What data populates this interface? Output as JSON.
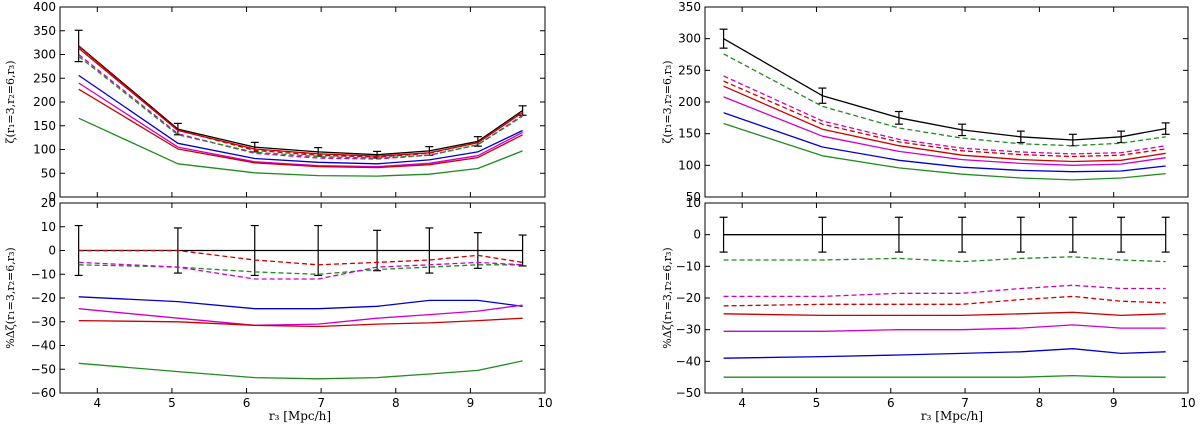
{
  "figure": {
    "ylabel_top": "ζ(r₁=3,r₂=6,r₃)",
    "ylabel_bottom": "%Δζ(r₁=3,r₂=6,r₃)",
    "xlabel": "r₃ [Mpc/h]"
  },
  "chart_data": [
    {
      "type": "line",
      "panel": "left-top",
      "title": "",
      "xlim": [
        3.5,
        10
      ],
      "ylim": [
        0,
        400
      ],
      "x_ticks": [
        4,
        5,
        6,
        7,
        8,
        9,
        10
      ],
      "y_ticks": [
        0,
        50,
        100,
        150,
        200,
        250,
        300,
        350,
        400
      ],
      "x": [
        3.75,
        5.08,
        6.11,
        6.96,
        7.75,
        8.45,
        9.1,
        9.7
      ],
      "series": [
        {
          "color": "#000000",
          "dash": false,
          "values": [
            318,
            143,
            105,
            95,
            89,
            97,
            117,
            182
          ],
          "errors": [
            33,
            12,
            10,
            9,
            7,
            9,
            10,
            10
          ]
        },
        {
          "color": "#cc0000",
          "dash": false,
          "values": [
            313,
            140,
            101,
            91,
            86,
            93,
            114,
            178
          ]
        },
        {
          "color": "#cc0000",
          "dash": true,
          "values": [
            317,
            141,
            98,
            88,
            84,
            92,
            115,
            180
          ]
        },
        {
          "color": "#cc00cc",
          "dash": true,
          "values": [
            300,
            133,
            92,
            82,
            80,
            88,
            110,
            172
          ]
        },
        {
          "color": "#228b22",
          "dash": true,
          "values": [
            296,
            131,
            94,
            85,
            82,
            88,
            110,
            170
          ]
        },
        {
          "color": "#0000cc",
          "dash": false,
          "values": [
            256,
            113,
            81,
            73,
            70,
            78,
            95,
            140
          ]
        },
        {
          "color": "#cc00cc",
          "dash": false,
          "values": [
            240,
            105,
            74,
            66,
            64,
            71,
            87,
            136
          ]
        },
        {
          "color": "#cc0000",
          "dash": false,
          "values": [
            227,
            101,
            72,
            64,
            62,
            68,
            83,
            131
          ]
        },
        {
          "color": "#228b22",
          "dash": false,
          "values": [
            166,
            70,
            51,
            45,
            44,
            48,
            60,
            97
          ]
        }
      ]
    },
    {
      "type": "line",
      "panel": "left-bottom",
      "title": "",
      "xlim": [
        3.5,
        10
      ],
      "ylim": [
        -60,
        20
      ],
      "x_ticks": [
        4,
        5,
        6,
        7,
        8,
        9,
        10
      ],
      "y_ticks": [
        -60,
        -50,
        -40,
        -30,
        -20,
        -10,
        0,
        10,
        20
      ],
      "x": [
        3.75,
        5.08,
        6.11,
        6.96,
        7.75,
        8.45,
        9.1,
        9.7
      ],
      "series": [
        {
          "color": "#000000",
          "dash": false,
          "values": [
            0,
            0,
            0,
            0,
            0,
            0,
            0,
            0
          ],
          "errors": [
            10.5,
            9.5,
            10.5,
            10.5,
            8.5,
            9.5,
            7.5,
            6.5
          ]
        },
        {
          "color": "#cc0000",
          "dash": true,
          "values": [
            0,
            0,
            -4,
            -6,
            -5,
            -4,
            -2,
            -5
          ]
        },
        {
          "color": "#228b22",
          "dash": true,
          "values": [
            -6,
            -7,
            -9,
            -10,
            -8,
            -7,
            -6,
            -6
          ]
        },
        {
          "color": "#cc00cc",
          "dash": true,
          "values": [
            -5,
            -7,
            -12,
            -12,
            -7,
            -6,
            -5,
            -6
          ]
        },
        {
          "color": "#0000cc",
          "dash": false,
          "values": [
            -19.5,
            -21.5,
            -24.5,
            -24.5,
            -23.5,
            -21,
            -21,
            -23.5
          ]
        },
        {
          "color": "#cc00cc",
          "dash": false,
          "values": [
            -24.5,
            -28.5,
            -31.5,
            -31,
            -28.5,
            -27,
            -25.5,
            -23
          ]
        },
        {
          "color": "#cc0000",
          "dash": false,
          "values": [
            -29.5,
            -30,
            -31.5,
            -32,
            -31,
            -30.5,
            -29.5,
            -28.5
          ]
        },
        {
          "color": "#228b22",
          "dash": false,
          "values": [
            -47.5,
            -51,
            -53.5,
            -54,
            -53.5,
            -52,
            -50.5,
            -46.5
          ]
        }
      ]
    },
    {
      "type": "line",
      "panel": "right-top",
      "title": "",
      "xlim": [
        3.5,
        10
      ],
      "ylim": [
        50,
        350
      ],
      "x_ticks": [
        4,
        5,
        6,
        7,
        8,
        9,
        10
      ],
      "y_ticks": [
        50,
        100,
        150,
        200,
        250,
        300,
        350
      ],
      "x": [
        3.75,
        5.08,
        6.11,
        6.96,
        7.75,
        8.45,
        9.1,
        9.7
      ],
      "series": [
        {
          "color": "#000000",
          "dash": false,
          "values": [
            300,
            210,
            175,
            156,
            145,
            140,
            145,
            158
          ],
          "errors": [
            15,
            12,
            10,
            9,
            9,
            9,
            9,
            9
          ]
        },
        {
          "color": "#228b22",
          "dash": true,
          "values": [
            276,
            193,
            159,
            143,
            134,
            131,
            135,
            145
          ]
        },
        {
          "color": "#cc00cc",
          "dash": true,
          "values": [
            241,
            170,
            141,
            127,
            121,
            118,
            120,
            131
          ]
        },
        {
          "color": "#cc0000",
          "dash": true,
          "values": [
            233,
            165,
            137,
            123,
            117,
            114,
            116,
            126
          ]
        },
        {
          "color": "#cc0000",
          "dash": false,
          "values": [
            225,
            157,
            131,
            116,
            109,
            106,
            108,
            119
          ]
        },
        {
          "color": "#cc00cc",
          "dash": false,
          "values": [
            208,
            146,
            122,
            109,
            103,
            100,
            102,
            112
          ]
        },
        {
          "color": "#0000cc",
          "dash": false,
          "values": [
            183,
            129,
            108,
            97,
            92,
            90,
            91,
            99
          ]
        },
        {
          "color": "#228b22",
          "dash": false,
          "values": [
            166,
            115,
            96,
            86,
            80,
            77,
            80,
            87
          ]
        }
      ]
    },
    {
      "type": "line",
      "panel": "right-bottom",
      "title": "",
      "xlim": [
        3.5,
        10
      ],
      "ylim": [
        -50,
        10
      ],
      "x_ticks": [
        4,
        5,
        6,
        7,
        8,
        9,
        10
      ],
      "y_ticks": [
        -50,
        -40,
        -30,
        -20,
        -10,
        0,
        10
      ],
      "x": [
        3.75,
        5.08,
        6.11,
        6.96,
        7.75,
        8.45,
        9.1,
        9.7
      ],
      "series": [
        {
          "color": "#000000",
          "dash": false,
          "values": [
            0,
            0,
            0,
            0,
            0,
            0,
            0,
            0
          ],
          "errors": [
            5.5,
            5.5,
            5.5,
            5.5,
            5.5,
            5.5,
            5.5,
            5.5
          ]
        },
        {
          "color": "#228b22",
          "dash": true,
          "values": [
            -8,
            -8,
            -7.5,
            -8.5,
            -7.5,
            -7,
            -8,
            -8.5
          ]
        },
        {
          "color": "#cc00cc",
          "dash": true,
          "values": [
            -19.5,
            -19.5,
            -18.5,
            -18.5,
            -17,
            -16,
            -17,
            -17
          ]
        },
        {
          "color": "#cc0000",
          "dash": true,
          "values": [
            -22.5,
            -22,
            -22,
            -22,
            -20.5,
            -19.5,
            -21,
            -21.5
          ]
        },
        {
          "color": "#cc0000",
          "dash": false,
          "values": [
            -25,
            -25.5,
            -25.5,
            -25.5,
            -25,
            -24.5,
            -25.5,
            -25
          ]
        },
        {
          "color": "#cc00cc",
          "dash": false,
          "values": [
            -30.5,
            -30.5,
            -30,
            -30,
            -29.5,
            -28.5,
            -29.5,
            -29.5
          ]
        },
        {
          "color": "#0000cc",
          "dash": false,
          "values": [
            -39,
            -38.5,
            -38,
            -37.5,
            -37,
            -36,
            -37.5,
            -37
          ]
        },
        {
          "color": "#228b22",
          "dash": false,
          "values": [
            -45,
            -45,
            -45,
            -45,
            -45,
            -44.5,
            -45,
            -45
          ]
        }
      ]
    }
  ]
}
